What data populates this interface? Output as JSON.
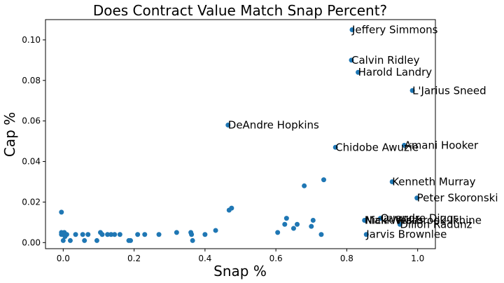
{
  "chart_data": {
    "type": "scatter",
    "title": "Does Contract Value Match Snap Percent?",
    "xlabel": "Snap %",
    "ylabel": "Cap %",
    "xlim": [
      -0.05,
      1.05
    ],
    "ylim": [
      -0.003,
      0.11
    ],
    "xticks": [
      0.0,
      0.2,
      0.4,
      0.6,
      0.8,
      1.0
    ],
    "yticks": [
      0.0,
      0.02,
      0.04,
      0.06,
      0.08,
      0.1
    ],
    "xtick_labels": [
      "0.0",
      "0.2",
      "0.4",
      "0.6",
      "0.8",
      "1.0"
    ],
    "ytick_labels": [
      "0.00",
      "0.02",
      "0.04",
      "0.06",
      "0.08",
      "0.10"
    ],
    "grid": false,
    "marker_color": "#1f77b4",
    "points": [
      {
        "x": 0.815,
        "y": 0.105,
        "label": "Jeffery Simmons"
      },
      {
        "x": 0.813,
        "y": 0.09,
        "label": "Calvin Ridley"
      },
      {
        "x": 0.832,
        "y": 0.084,
        "label": "Harold Landry"
      },
      {
        "x": 0.985,
        "y": 0.075,
        "label": "L'Jarius Sneed"
      },
      {
        "x": 0.465,
        "y": 0.058,
        "label": "DeAndre Hopkins"
      },
      {
        "x": 0.768,
        "y": 0.047,
        "label": "Chidobe Awuzie"
      },
      {
        "x": 0.962,
        "y": 0.048,
        "label": "Amani Hooker"
      },
      {
        "x": 0.928,
        "y": 0.03,
        "label": "Kenneth Murray"
      },
      {
        "x": 0.998,
        "y": 0.022,
        "label": "Peter Skoronski"
      },
      {
        "x": 0.895,
        "y": 0.012,
        "label": "Quandre Diggs"
      },
      {
        "x": 0.85,
        "y": 0.011,
        "label": "Nick Westbrook-Ikhine"
      },
      {
        "x": 0.852,
        "y": 0.011,
        "label": "Malik Willis"
      },
      {
        "x": 0.95,
        "y": 0.009,
        "label": "Dillon Radunz"
      },
      {
        "x": 0.855,
        "y": 0.004,
        "label": "Jarvis Brownlee"
      },
      {
        "x": -0.005,
        "y": 0.015,
        "label": ""
      },
      {
        "x": -0.005,
        "y": 0.005,
        "label": ""
      },
      {
        "x": -0.005,
        "y": 0.004,
        "label": ""
      },
      {
        "x": 0.0,
        "y": 0.001,
        "label": ""
      },
      {
        "x": 0.003,
        "y": 0.005,
        "label": ""
      },
      {
        "x": 0.005,
        "y": 0.003,
        "label": ""
      },
      {
        "x": 0.01,
        "y": 0.004,
        "label": ""
      },
      {
        "x": 0.02,
        "y": 0.001,
        "label": ""
      },
      {
        "x": 0.035,
        "y": 0.004,
        "label": ""
      },
      {
        "x": 0.055,
        "y": 0.004,
        "label": ""
      },
      {
        "x": 0.06,
        "y": 0.001,
        "label": ""
      },
      {
        "x": 0.07,
        "y": 0.004,
        "label": ""
      },
      {
        "x": 0.095,
        "y": 0.001,
        "label": ""
      },
      {
        "x": 0.105,
        "y": 0.005,
        "label": ""
      },
      {
        "x": 0.11,
        "y": 0.004,
        "label": ""
      },
      {
        "x": 0.125,
        "y": 0.004,
        "label": ""
      },
      {
        "x": 0.135,
        "y": 0.004,
        "label": ""
      },
      {
        "x": 0.145,
        "y": 0.004,
        "label": ""
      },
      {
        "x": 0.16,
        "y": 0.004,
        "label": ""
      },
      {
        "x": 0.185,
        "y": 0.001,
        "label": ""
      },
      {
        "x": 0.19,
        "y": 0.001,
        "label": ""
      },
      {
        "x": 0.21,
        "y": 0.004,
        "label": ""
      },
      {
        "x": 0.23,
        "y": 0.004,
        "label": ""
      },
      {
        "x": 0.27,
        "y": 0.004,
        "label": ""
      },
      {
        "x": 0.32,
        "y": 0.005,
        "label": ""
      },
      {
        "x": 0.36,
        "y": 0.005,
        "label": ""
      },
      {
        "x": 0.362,
        "y": 0.004,
        "label": ""
      },
      {
        "x": 0.365,
        "y": 0.001,
        "label": ""
      },
      {
        "x": 0.4,
        "y": 0.004,
        "label": ""
      },
      {
        "x": 0.43,
        "y": 0.006,
        "label": ""
      },
      {
        "x": 0.468,
        "y": 0.016,
        "label": ""
      },
      {
        "x": 0.475,
        "y": 0.017,
        "label": ""
      },
      {
        "x": 0.605,
        "y": 0.005,
        "label": ""
      },
      {
        "x": 0.625,
        "y": 0.009,
        "label": ""
      },
      {
        "x": 0.63,
        "y": 0.012,
        "label": ""
      },
      {
        "x": 0.65,
        "y": 0.007,
        "label": ""
      },
      {
        "x": 0.66,
        "y": 0.009,
        "label": ""
      },
      {
        "x": 0.68,
        "y": 0.028,
        "label": ""
      },
      {
        "x": 0.7,
        "y": 0.008,
        "label": ""
      },
      {
        "x": 0.705,
        "y": 0.011,
        "label": ""
      },
      {
        "x": 0.728,
        "y": 0.004,
        "label": ""
      },
      {
        "x": 0.735,
        "y": 0.031,
        "label": ""
      }
    ]
  }
}
